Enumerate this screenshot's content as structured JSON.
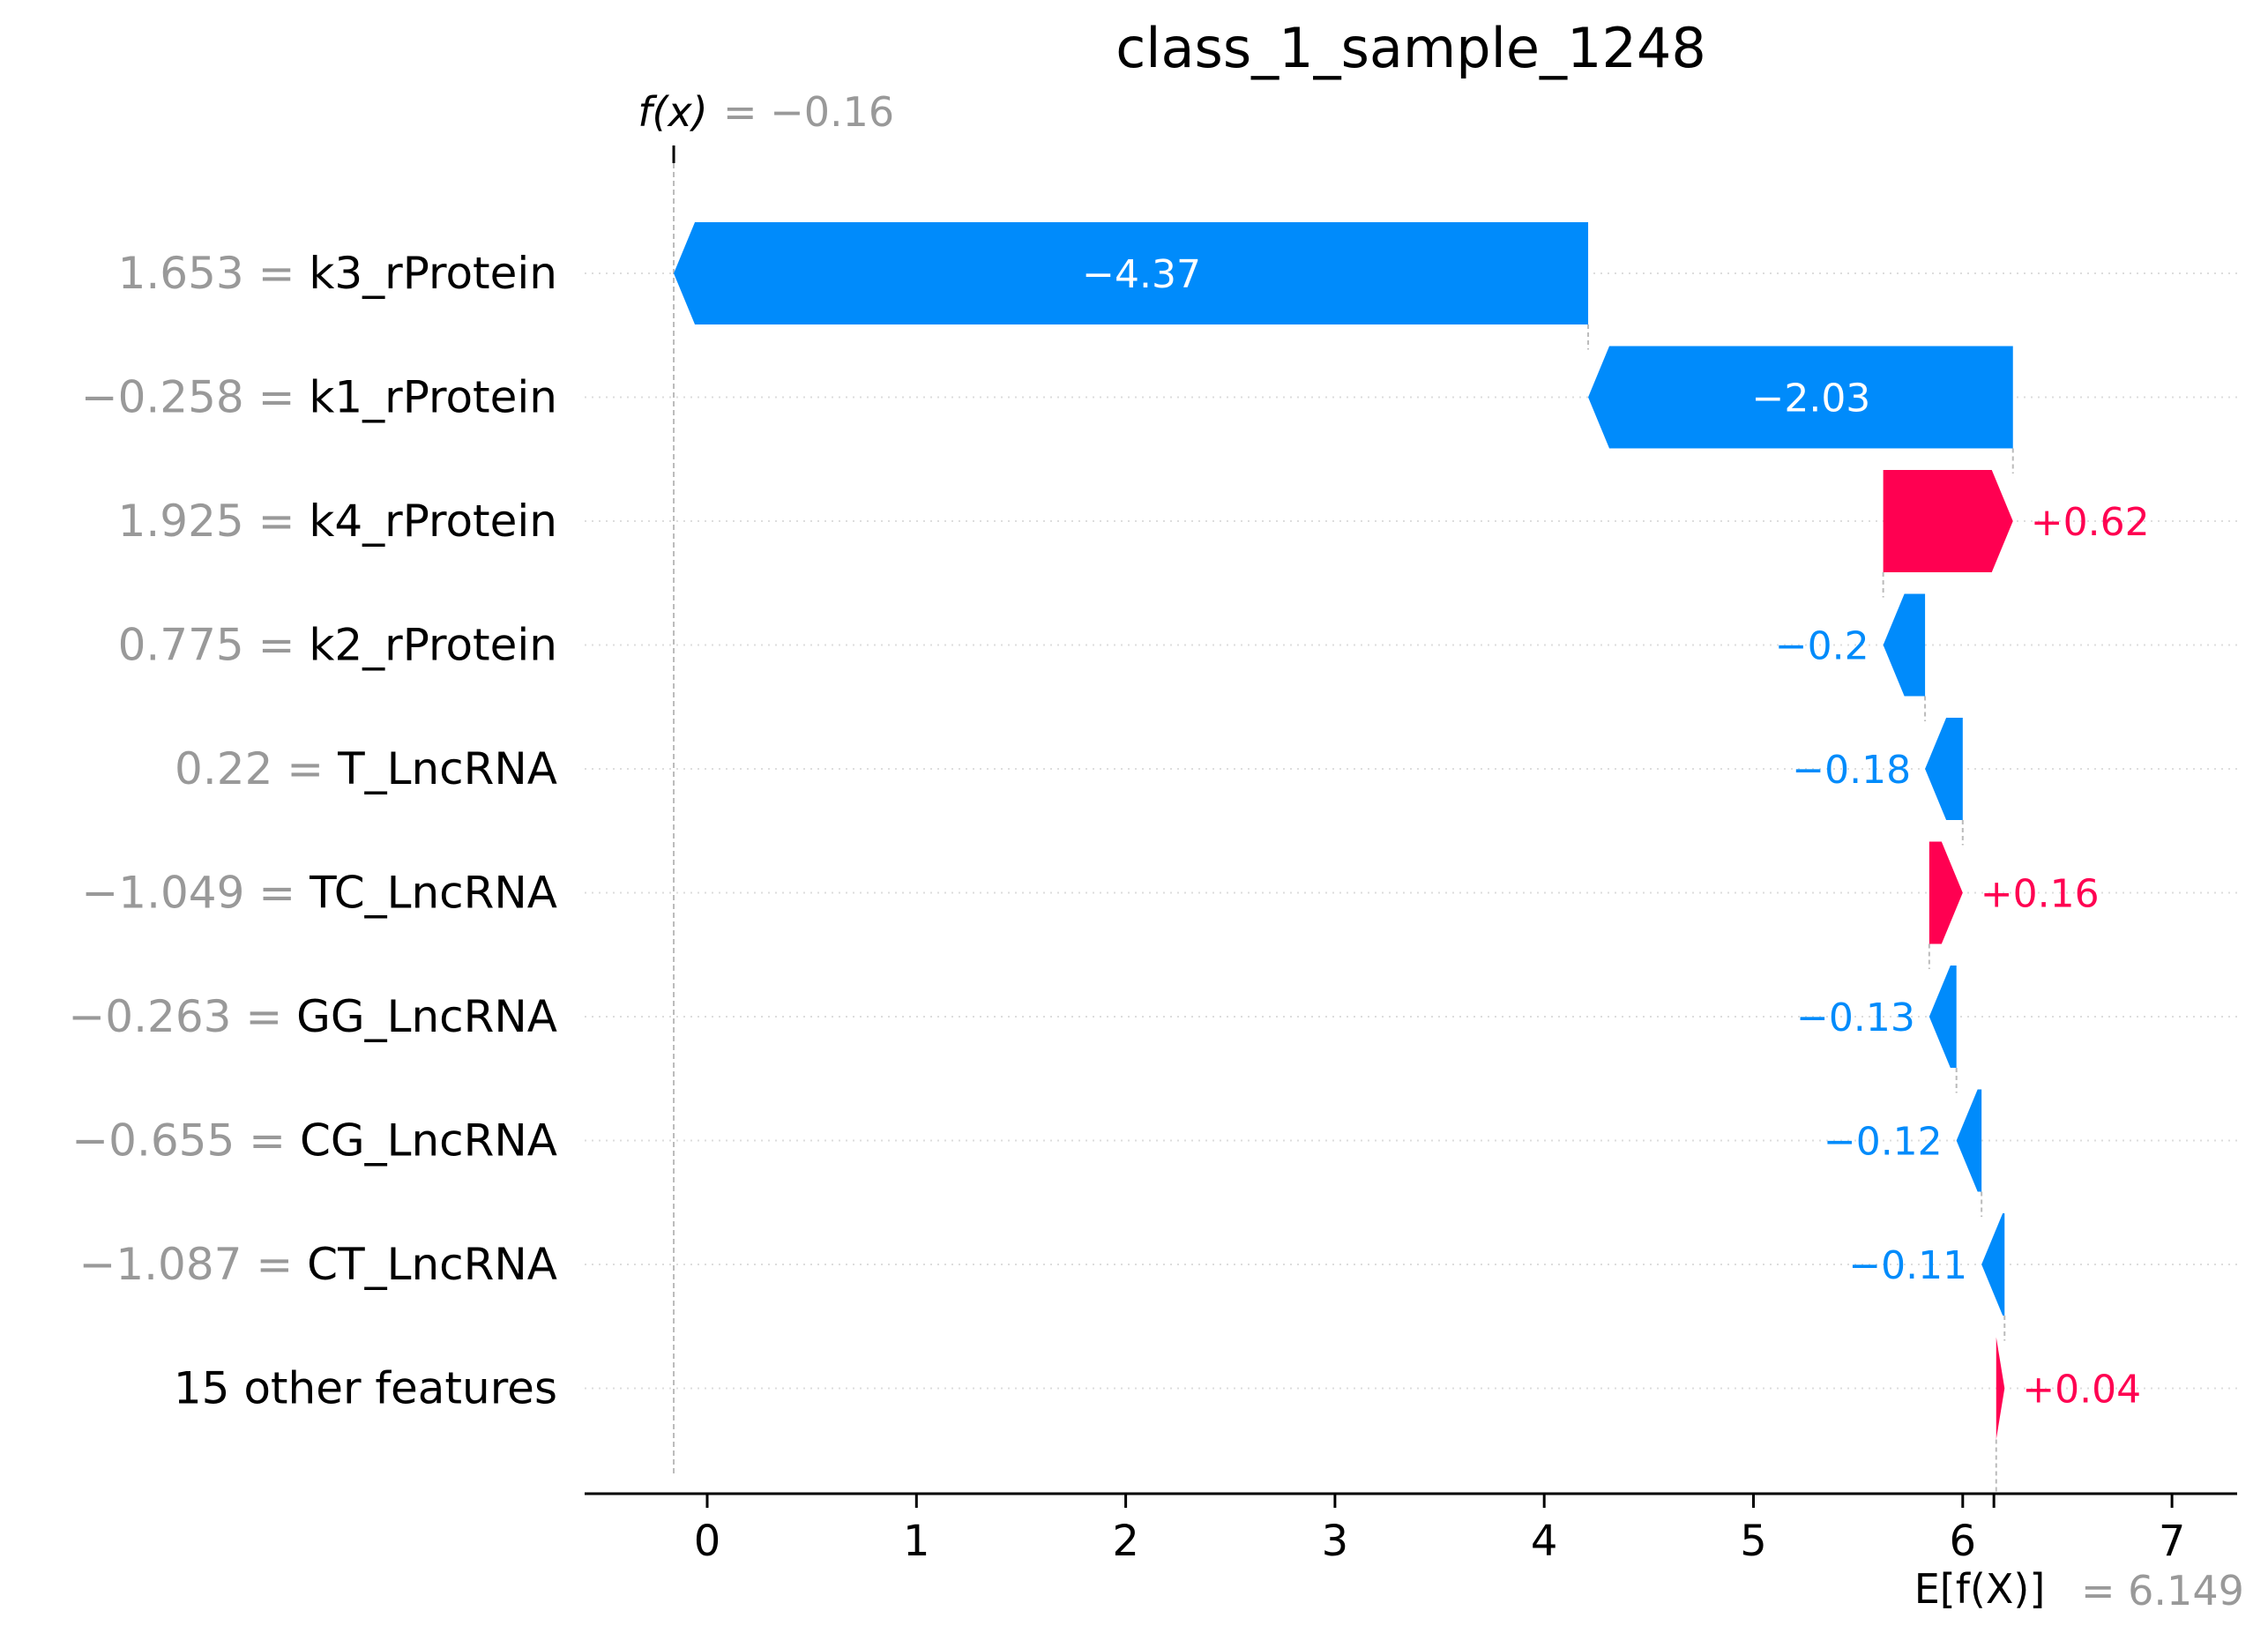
{
  "chart_data": {
    "type": "waterfall",
    "title": "class_1_sample_1248",
    "fx": {
      "label": "f(x)",
      "value_text": "= −0.16",
      "value": -0.16
    },
    "base": {
      "label": "E[f(X)]",
      "value_text": "= 6.149",
      "value": 6.149
    },
    "xlim": [
      -0.58,
      7.3
    ],
    "xticks": [
      0,
      1,
      2,
      3,
      4,
      5,
      6,
      7
    ],
    "grid": "dotted horizontal row guides",
    "rows": [
      {
        "value_text": "1.653",
        "feature": "k3_rProtein",
        "shap": -4.37,
        "label": "−4.37"
      },
      {
        "value_text": "−0.258",
        "feature": "k1_rProtein",
        "shap": -2.03,
        "label": "−2.03"
      },
      {
        "value_text": "1.925",
        "feature": "k4_rProtein",
        "shap": 0.62,
        "label": "+0.62"
      },
      {
        "value_text": "0.775",
        "feature": "k2_rProtein",
        "shap": -0.2,
        "label": "−0.2"
      },
      {
        "value_text": "0.22",
        "feature": "T_LncRNA",
        "shap": -0.18,
        "label": "−0.18"
      },
      {
        "value_text": "−1.049",
        "feature": "TC_LncRNA",
        "shap": 0.16,
        "label": "+0.16"
      },
      {
        "value_text": "−0.263",
        "feature": "GG_LncRNA",
        "shap": -0.13,
        "label": "−0.13"
      },
      {
        "value_text": "−0.655",
        "feature": "CG_LncRNA",
        "shap": -0.12,
        "label": "−0.12"
      },
      {
        "value_text": "−1.087",
        "feature": "CT_LncRNA",
        "shap": -0.11,
        "label": "−0.11"
      },
      {
        "value_text": "",
        "feature": "15 other features",
        "shap": 0.04,
        "label": "+0.04"
      }
    ],
    "colors": {
      "positive": "#ff0051",
      "negative": "#008bfb",
      "value_gray": "#999999",
      "text": "#000000"
    }
  }
}
